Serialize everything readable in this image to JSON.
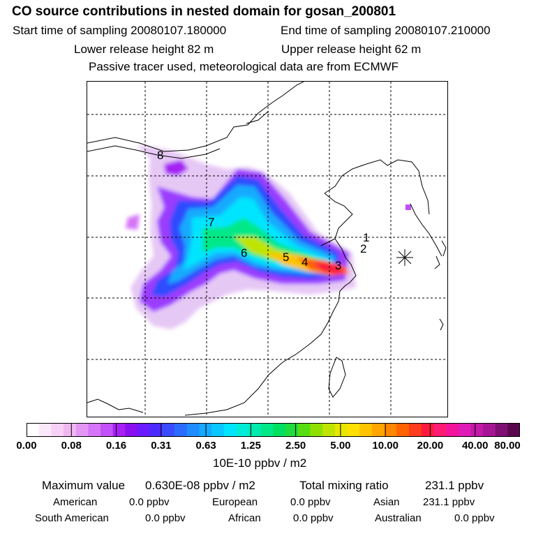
{
  "header": {
    "title": "CO  source contributions in nested domain for gosan_200801",
    "start_label": "Start time of sampling 20080107.180000",
    "end_label": "End time of sampling 20080107.210000",
    "lower_label": "Lower release height   82 m",
    "upper_label": "Upper release height   62 m",
    "note": "Passive tracer used, meteorological data are from ECMWF"
  },
  "map": {
    "labels": [
      "8",
      "7",
      "6",
      "5",
      "4",
      "3",
      "2",
      "1"
    ],
    "receptor_symbol": "star-marker"
  },
  "colorbar": {
    "ticks": [
      "0.00",
      "0.08",
      "0.16",
      "0.31",
      "0.63",
      "1.25",
      "2.50",
      "5.00",
      "10.00",
      "20.00",
      "40.00",
      "80.00"
    ],
    "units": "10E-10 ppbv / m2",
    "colors": [
      "#ffffff",
      "#fbe8fb",
      "#f6d0f6",
      "#f0b8f0",
      "#e397f5",
      "#d575f8",
      "#c150f8",
      "#a620f4",
      "#8a10ef",
      "#6a1cff",
      "#4a2cff",
      "#3a4cff",
      "#2b6cff",
      "#1f8cff",
      "#13aaff",
      "#0bc7ff",
      "#00e5ff",
      "#00ecd8",
      "#00eab0",
      "#00e887",
      "#00e060",
      "#21db3e",
      "#59dd12",
      "#8fe000",
      "#bfe400",
      "#e7e700",
      "#ffe000",
      "#ffc300",
      "#ffa600",
      "#ff8700",
      "#ff6300",
      "#ff3c1e",
      "#ff1a3c",
      "#ff1a72",
      "#f2149a",
      "#e01cb6",
      "#c41aa8",
      "#a61694",
      "#7e0f72",
      "#5a084e"
    ]
  },
  "stats": {
    "max_label": "Maximum value",
    "max_value": "0.630E-08 ppbv / m2",
    "total_label": "Total mixing ratio",
    "total_value": "231.1 ppbv"
  },
  "regions": [
    {
      "name": "American",
      "value": "0.0 ppbv"
    },
    {
      "name": "European",
      "value": "0.0 ppbv"
    },
    {
      "name": "Asian",
      "value": "231.1 ppbv"
    },
    {
      "name": "South American",
      "value": "0.0 ppbv"
    },
    {
      "name": "African",
      "value": "0.0 ppbv"
    },
    {
      "name": "Australian",
      "value": "0.0 ppbv"
    }
  ]
}
